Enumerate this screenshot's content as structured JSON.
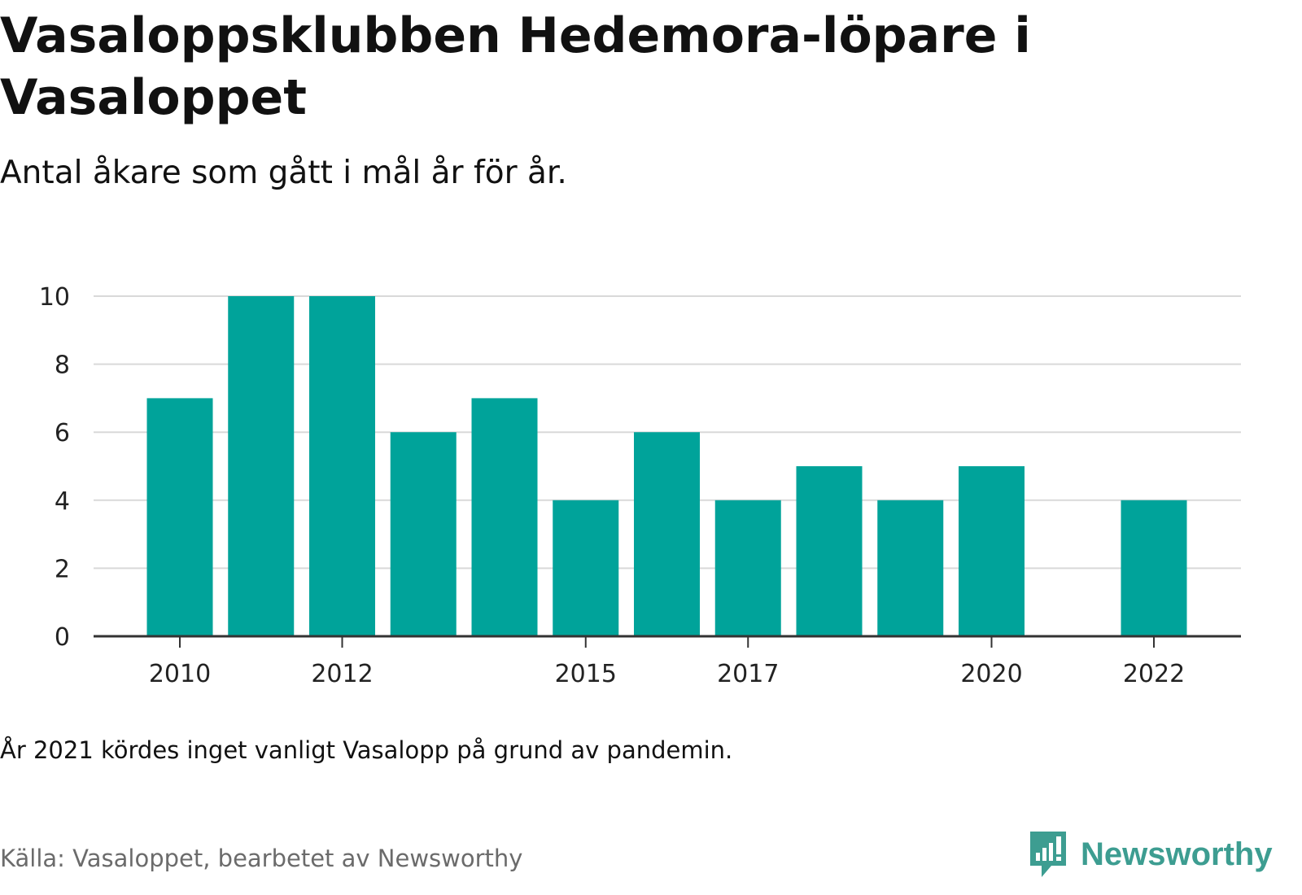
{
  "title": "Vasaloppsklubben Hedemora-löpare i Vasaloppet",
  "subtitle": "Antal åkare som gått i mål år för år.",
  "note": "År 2021 kördes inget vanligt Vasalopp på grund av pandemin.",
  "source": "Källa: Vasaloppet, bearbetet av Newsworthy",
  "brand": {
    "name": "Newsworthy",
    "color": "#3d9d91"
  },
  "chart_data": {
    "type": "bar",
    "title": "Vasaloppsklubben Hedemora-löpare i Vasaloppet",
    "subtitle": "Antal åkare som gått i mål år för år.",
    "xlabel": "",
    "ylabel": "",
    "categories": [
      2010,
      2011,
      2012,
      2013,
      2014,
      2015,
      2016,
      2017,
      2018,
      2019,
      2020,
      2021,
      2022
    ],
    "values": [
      7,
      10,
      10,
      6,
      7,
      4,
      6,
      4,
      5,
      4,
      5,
      null,
      4
    ],
    "ylim": [
      0,
      10
    ],
    "yticks": [
      0,
      2,
      4,
      6,
      8,
      10
    ],
    "xticks": [
      2010,
      2012,
      2015,
      2017,
      2020,
      2022
    ],
    "grid": true,
    "bar_color": "#00a39a"
  }
}
